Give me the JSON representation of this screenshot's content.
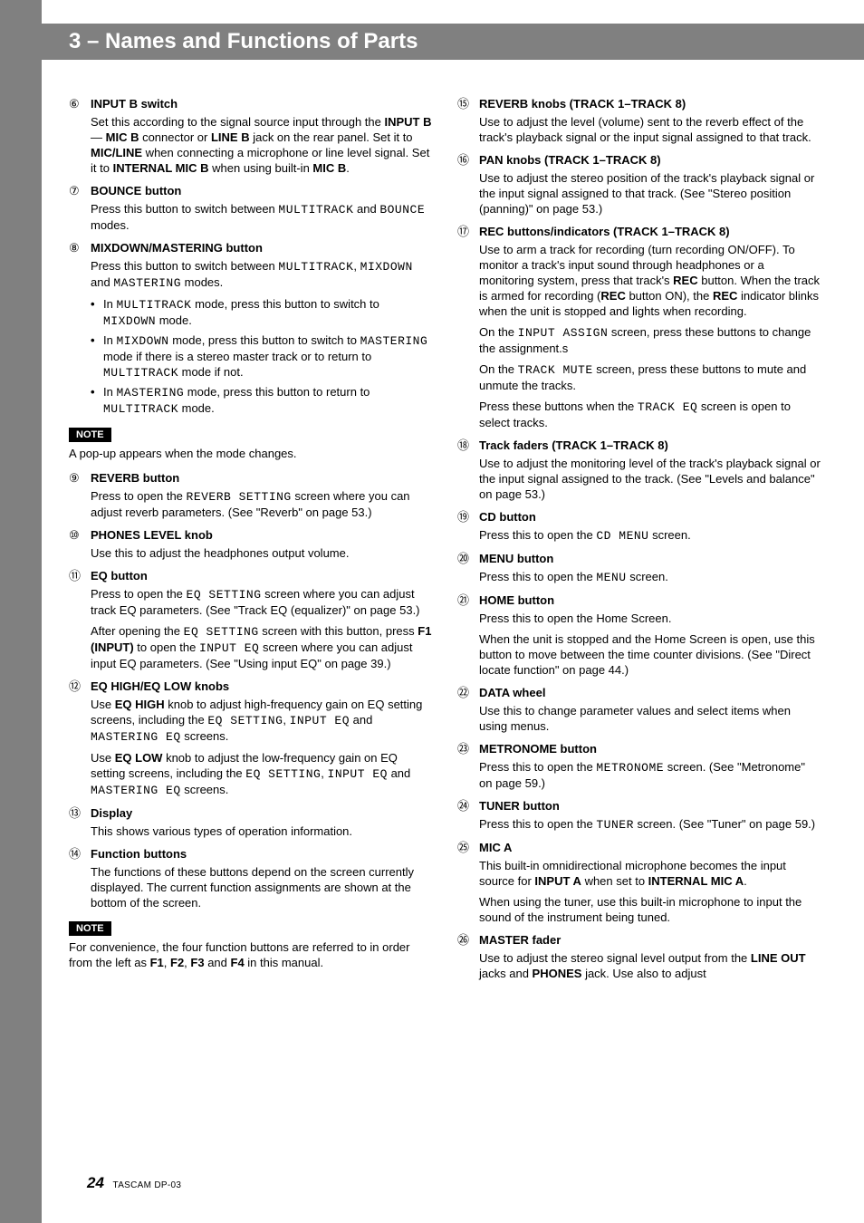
{
  "header": {
    "title": "3 – Names and Functions of Parts"
  },
  "left_col": {
    "items": [
      {
        "num": "⑥",
        "title": "INPUT B switch",
        "paras": [
          "Set this according to the signal source input through the <b>INPUT B</b> — <b>MIC B</b> connector or <b>LINE B</b> jack on the rear panel. Set it to <b>MIC/LINE</b> when connecting a microphone or line level signal. Set it to <b>INTERNAL MIC B</b> when using built-in <b>MIC B</b>."
        ]
      },
      {
        "num": "⑦",
        "title": "BOUNCE button",
        "paras": [
          "Press this button to switch between <span class='lcd'>MULTITRACK</span> and <span class='lcd'>BOUNCE</span> modes."
        ]
      },
      {
        "num": "⑧",
        "title": "MIXDOWN/MASTERING button",
        "paras": [
          "Press this button to switch between <span class='lcd'>MULTITRACK</span>, <span class='lcd'>MIXDOWN</span> and <span class='lcd'>MASTERING</span> modes."
        ],
        "bullets": [
          "In <span class='lcd'>MULTITRACK</span> mode, press this button to switch to <span class='lcd'>MIXDOWN</span> mode.",
          "In <span class='lcd'>MIXDOWN</span> mode, press this button to switch to <span class='lcd'>MASTERING</span> mode if there is a stereo master track or to return to <span class='lcd'>MULTITRACK</span> mode if not.",
          "In <span class='lcd'>MASTERING</span> mode, press this button to return to <span class='lcd'>MULTITRACK</span> mode."
        ]
      }
    ],
    "note1": {
      "label": "NOTE",
      "text": "A pop-up appears when the mode changes."
    },
    "items2": [
      {
        "num": "⑨",
        "title": "REVERB button",
        "paras": [
          "Press to open the <span class='lcd'>REVERB SETTING</span> screen where you can adjust reverb parameters. (See \"Reverb\" on page 53.)"
        ]
      },
      {
        "num": "⑩",
        "title": "PHONES LEVEL knob",
        "paras": [
          "Use this to adjust the headphones output volume."
        ]
      },
      {
        "num": "⑪",
        "title": "EQ button",
        "paras": [
          "Press to open the <span class='lcd'>EQ SETTING</span> screen where you can adjust track EQ parameters. (See \"Track EQ (equalizer)\" on page 53.)",
          "After opening the <span class='lcd'>EQ SETTING</span> screen with this button, press <b>F1 (INPUT)</b> to open the <span class='lcd'>INPUT EQ</span> screen where you can adjust input EQ parameters. (See \"Using input EQ\" on page 39.)"
        ]
      },
      {
        "num": "⑫",
        "title": "EQ HIGH/EQ LOW knobs",
        "paras": [
          "Use <b>EQ HIGH</b> knob to adjust high-frequency gain on EQ setting screens, including the  <span class='lcd'>EQ SETTING</span>, <span class='lcd'>INPUT EQ</span> and <span class='lcd'>MASTERING EQ</span> screens.",
          "Use <b>EQ LOW</b> knob to adjust the low-frequency gain on EQ setting screens, including the <span class='lcd'>EQ SETTING</span>, <span class='lcd'>INPUT EQ</span> and <span class='lcd'>MASTERING EQ</span> screens."
        ]
      },
      {
        "num": "⑬",
        "title": "Display",
        "paras": [
          "This shows various types of operation information."
        ]
      },
      {
        "num": "⑭",
        "title": "Function buttons",
        "paras": [
          "The functions of these buttons depend on the screen currently displayed. The current function assignments are shown at the bottom of the screen."
        ]
      }
    ],
    "note2": {
      "label": "NOTE",
      "text": "For convenience, the four function buttons are referred to in order from the left as <b>F1</b>, <b>F2</b>, <b>F3</b> and <b>F4</b> in this manual."
    }
  },
  "right_col": {
    "items": [
      {
        "num": "⑮",
        "title": "REVERB knobs (TRACK 1–TRACK 8)",
        "paras": [
          "Use to adjust the level (volume) sent to the reverb effect of the track's playback signal or the input signal assigned to that track."
        ]
      },
      {
        "num": "⑯",
        "title": "PAN knobs (TRACK 1–TRACK 8)",
        "paras": [
          "Use to adjust the stereo position of the track's playback signal or the input signal assigned to that track. (See \"Stereo position (panning)\" on page 53.)"
        ]
      },
      {
        "num": "⑰",
        "title": "REC buttons/indicators (TRACK 1–TRACK 8)",
        "paras": [
          "Use to arm a track for recording (turn recording ON/OFF). To monitor a track's input sound through headphones or a monitoring system, press that track's <b>REC</b> button. When the track is armed for recording (<b>REC</b> button ON), the <b>REC</b> indicator blinks when the unit is stopped and lights when recording.",
          "On the <span class='lcd'>INPUT ASSIGN</span> screen, press these buttons to change the assignment.s",
          "On the <span class='lcd'>TRACK MUTE</span> screen, press these buttons to mute and unmute the tracks.",
          "Press these buttons when the <span class='lcd'>TRACK EQ</span> screen is open to select tracks."
        ]
      },
      {
        "num": "⑱",
        "title": "Track faders (TRACK 1–TRACK 8)",
        "paras": [
          "Use to adjust the monitoring level of the track's playback signal or the input signal assigned to the track. (See \"Levels and balance\" on page 53.)"
        ]
      },
      {
        "num": "⑲",
        "title": "CD button",
        "paras": [
          "Press this to open the <span class='lcd'>CD MENU</span> screen."
        ]
      },
      {
        "num": "⑳",
        "title": "MENU button",
        "paras": [
          "Press this to open the <span class='lcd'>MENU</span> screen."
        ]
      },
      {
        "num": "㉑",
        "title": "HOME button",
        "paras": [
          "Press this to open the Home Screen.",
          "When the unit is stopped and the Home Screen is open, use this button to move between the time counter divisions. (See \"Direct locate function\" on page 44.)"
        ]
      },
      {
        "num": "㉒",
        "title": "DATA wheel",
        "paras": [
          "Use this to change parameter values and select items when using menus."
        ]
      },
      {
        "num": "㉓",
        "title": "METRONOME button",
        "paras": [
          "Press this to open the <span class='lcd'>METRONOME</span> screen. (See \"Metronome\" on page 59.)"
        ]
      },
      {
        "num": "㉔",
        "title": "TUNER button",
        "paras": [
          "Press this to open the <span class='lcd'>TUNER</span> screen. (See \"Tuner\" on page 59.)"
        ]
      },
      {
        "num": "㉕",
        "title": "MIC A",
        "paras": [
          "This built-in omnidirectional microphone becomes the input source for <b>INPUT A</b> when set to <b>INTERNAL MIC A</b>.",
          "When using the tuner, use this built-in microphone to input the sound of the instrument being tuned."
        ]
      },
      {
        "num": "㉖",
        "title": "MASTER fader",
        "paras": [
          "Use to adjust the stereo signal level output from the <b>LINE OUT</b> jacks and <b>PHONES</b> jack. Use also to adjust"
        ]
      }
    ]
  },
  "footer": {
    "page": "24",
    "model": "TASCAM DP-03"
  }
}
